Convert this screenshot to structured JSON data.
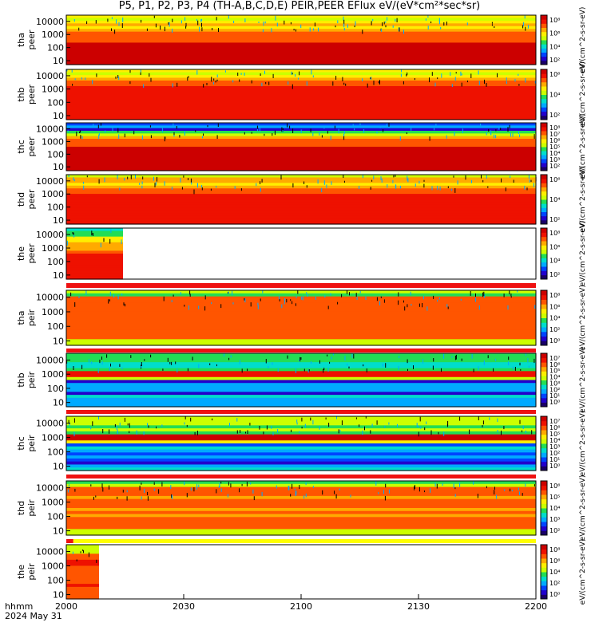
{
  "title": "P5, P1, P2, P3, P4 (TH-A,B,C,D,E) PEIR,PEER EFlux eV/(eV*cm²*sec*sr)",
  "time_axis": {
    "unit_label": "hhmm",
    "date_label": "2024 May 31",
    "ticks": [
      "2000",
      "2030",
      "2100",
      "2130",
      "2200"
    ]
  },
  "colorbar_unit": "eV/(cm^2-s-sr-eV)",
  "colors": {
    "background": "#ffffff",
    "flag_red": "#ee1111",
    "flag_yellow": "#ffff00",
    "palette": [
      "#1a0066",
      "#2200cc",
      "#0044ff",
      "#00aaff",
      "#00ddcc",
      "#22dd55",
      "#ccff00",
      "#ffee00",
      "#ffaa00",
      "#ff5500",
      "#ee1100",
      "#cc0000"
    ]
  },
  "chart_data": [
    {
      "type": "heatmap",
      "probe": "tha",
      "species": "peer",
      "ylabel": "tha\npeer",
      "y_ticks": [
        "10000",
        "1000",
        "100",
        "10"
      ],
      "ylim": [
        5,
        30000
      ],
      "y_scale": "log",
      "colorbar_ticks": [
        "10⁸",
        "10⁶",
        "10⁴",
        "10²"
      ],
      "coverage": [
        0,
        1
      ]
    },
    {
      "type": "heatmap",
      "probe": "thb",
      "species": "peer",
      "ylabel": "thb\npeer",
      "y_ticks": [
        "10000",
        "1000",
        "100",
        "10"
      ],
      "ylim": [
        5,
        30000
      ],
      "y_scale": "log",
      "colorbar_ticks": [
        "10⁶",
        "10⁴",
        "10²"
      ],
      "coverage": [
        0,
        1
      ]
    },
    {
      "type": "heatmap",
      "probe": "thc",
      "species": "peer",
      "ylabel": "thc\npeer",
      "y_ticks": [
        "10000",
        "1000",
        "100",
        "10"
      ],
      "ylim": [
        5,
        30000
      ],
      "y_scale": "log",
      "colorbar_ticks": [
        "10⁸",
        "10⁷",
        "10⁶",
        "10⁵",
        "10⁴",
        "10³",
        "10²"
      ],
      "coverage": [
        0,
        1
      ]
    },
    {
      "type": "heatmap",
      "probe": "thd",
      "species": "peer",
      "ylabel": "thd\npeer",
      "y_ticks": [
        "10000",
        "1000",
        "100",
        "10"
      ],
      "ylim": [
        5,
        30000
      ],
      "y_scale": "log",
      "colorbar_ticks": [
        "10⁶",
        "10⁴",
        "10²"
      ],
      "coverage": [
        0,
        1
      ]
    },
    {
      "type": "heatmap",
      "probe": "the",
      "species": "peer",
      "ylabel": "the\npeer",
      "y_ticks": [
        "10000",
        "1000",
        "100",
        "10"
      ],
      "ylim": [
        5,
        30000
      ],
      "y_scale": "log",
      "colorbar_ticks": [
        "10⁸",
        "10⁶",
        "10⁴",
        "10²"
      ],
      "coverage": [
        0,
        0.12
      ]
    },
    {
      "type": "heatmap",
      "probe": "tha",
      "species": "peir",
      "ylabel": "tha\npeir",
      "y_ticks": [
        "10000",
        "1000",
        "100",
        "10"
      ],
      "ylim": [
        5,
        30000
      ],
      "y_scale": "log",
      "colorbar_ticks": [
        "10⁸",
        "10⁶",
        "10⁴",
        "10²",
        "10⁰"
      ],
      "coverage": [
        0,
        1
      ]
    },
    {
      "type": "heatmap",
      "probe": "thb",
      "species": "peir",
      "ylabel": "thb\npeir",
      "y_ticks": [
        "10000",
        "1000",
        "100",
        "10"
      ],
      "ylim": [
        5,
        30000
      ],
      "y_scale": "log",
      "colorbar_ticks": [
        "10⁷",
        "10⁶",
        "10⁵",
        "10⁴",
        "10³",
        "10²",
        "10¹",
        "10⁰"
      ],
      "coverage": [
        0,
        1
      ]
    },
    {
      "type": "heatmap",
      "probe": "thc",
      "species": "peir",
      "ylabel": "thc\npeir",
      "y_ticks": [
        "10000",
        "1000",
        "100",
        "10"
      ],
      "ylim": [
        5,
        30000
      ],
      "y_scale": "log",
      "colorbar_ticks": [
        "10⁷",
        "10⁶",
        "10⁵",
        "10⁴",
        "10³",
        "10²",
        "10¹",
        "10⁰"
      ],
      "coverage": [
        0,
        1
      ]
    },
    {
      "type": "heatmap",
      "probe": "thd",
      "species": "peir",
      "ylabel": "thd\npeir",
      "y_ticks": [
        "10000",
        "1000",
        "100",
        "10"
      ],
      "ylim": [
        5,
        30000
      ],
      "y_scale": "log",
      "colorbar_ticks": [
        "10⁶",
        "10⁵",
        "10⁴",
        "10³",
        "10²"
      ],
      "coverage": [
        0,
        1
      ]
    },
    {
      "type": "heatmap",
      "probe": "the",
      "species": "peir",
      "ylabel": "the\npeir",
      "y_ticks": [
        "10000",
        "1000",
        "100",
        "10"
      ],
      "ylim": [
        5,
        30000
      ],
      "y_scale": "log",
      "colorbar_ticks": [
        "10⁸",
        "10⁶",
        "10⁴",
        "10²",
        "10⁰"
      ],
      "coverage": [
        0,
        0.07
      ]
    }
  ]
}
